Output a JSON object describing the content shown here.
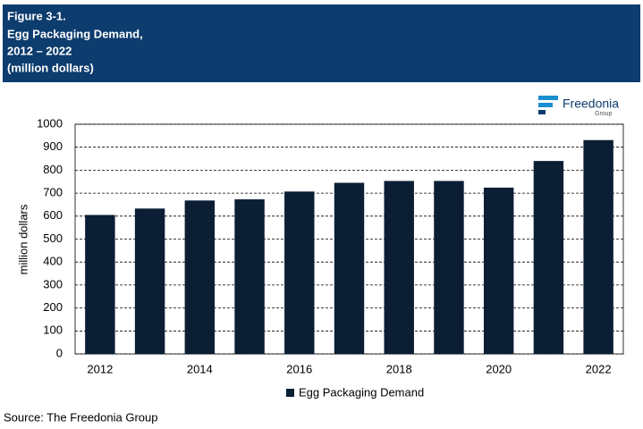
{
  "chart_data": {
    "type": "bar",
    "title": [
      "Figure 3-1.",
      "Egg Packaging Demand,",
      "2012 – 2022",
      "(million dollars)"
    ],
    "logo": "Freedonia",
    "logo_sub": "Group",
    "y_label": "million dollars",
    "categories": [
      "2012",
      null,
      "2014",
      null,
      "2016",
      null,
      "2018",
      null,
      "2020",
      null,
      "2022"
    ],
    "series": [
      {
        "name": "Egg Packaging Demand",
        "color": "#0b1e34",
        "values": [
          605,
          633,
          668,
          673,
          707,
          745,
          753,
          753,
          724,
          840,
          931
        ]
      }
    ],
    "ylim": [
      0,
      1000
    ],
    "yticks": [
      0,
      100,
      200,
      300,
      400,
      500,
      600,
      700,
      800,
      900,
      1000
    ],
    "grid": true,
    "legend": "bottom",
    "source": "Source: The Freedonia Group"
  }
}
